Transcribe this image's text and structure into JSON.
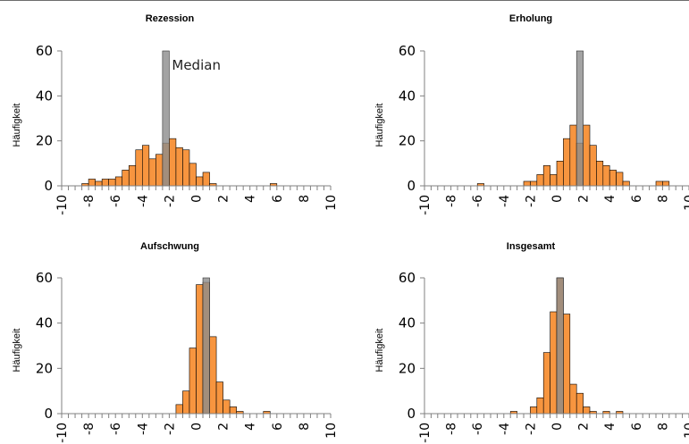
{
  "colors": {
    "bar_fill": "#f7953f",
    "bar_stroke": "#000000",
    "median_fill": "#8c8c8c",
    "median_opacity": 0.8,
    "axis": "#808080"
  },
  "chart_data": [
    {
      "type": "bar",
      "title": "Rezession",
      "ylabel": "Häufigkeit",
      "xlabel": "",
      "bin_width": 0.5,
      "xlim": [
        -10,
        10
      ],
      "ylim": [
        0,
        60
      ],
      "x_ticks": [
        "-10",
        "-8",
        "-6",
        "-4",
        "-2",
        "0",
        "2",
        "4",
        "6",
        "8",
        "10"
      ],
      "y_ticks": [
        "0",
        "20",
        "40",
        "60"
      ],
      "x": [
        -8.5,
        -8,
        -7.5,
        -7,
        -6.5,
        -6,
        -5.5,
        -5,
        -4.5,
        -4,
        -3.5,
        -3,
        -2.5,
        -2,
        -1.5,
        -1,
        -0.5,
        0,
        0.5,
        1,
        5.5
      ],
      "values": [
        1,
        3,
        2,
        3,
        3,
        4,
        7,
        9,
        16,
        18,
        12,
        14,
        19,
        21,
        17,
        16,
        10,
        4,
        6,
        1,
        1
      ],
      "median": {
        "x": -2.5,
        "height": 60,
        "label": "Median"
      }
    },
    {
      "type": "bar",
      "title": "Erholung",
      "ylabel": "Häufigkeit",
      "xlabel": "",
      "bin_width": 0.5,
      "xlim": [
        -10,
        10
      ],
      "ylim": [
        0,
        60
      ],
      "x_ticks": [
        "-10",
        "-8",
        "-6",
        "-4",
        "-2",
        "0",
        "2",
        "4",
        "6",
        "8",
        "10"
      ],
      "y_ticks": [
        "0",
        "20",
        "40",
        "60"
      ],
      "x": [
        -6,
        -2.5,
        -2,
        -1.5,
        -1,
        -0.5,
        0,
        0.5,
        1,
        1.5,
        2,
        2.5,
        3,
        3.5,
        4,
        4.5,
        5,
        7.5,
        8
      ],
      "values": [
        1,
        2,
        2,
        5,
        9,
        5,
        11,
        21,
        27,
        19,
        27,
        18,
        11,
        9,
        7,
        6,
        2,
        2,
        2
      ],
      "median": {
        "x": 1.5,
        "height": 60,
        "label": ""
      }
    },
    {
      "type": "bar",
      "title": "Aufschwung",
      "ylabel": "Häufigkeit",
      "xlabel": "",
      "bin_width": 0.5,
      "xlim": [
        -10,
        10
      ],
      "ylim": [
        0,
        60
      ],
      "x_ticks": [
        "-10",
        "-8",
        "-6",
        "-4",
        "-2",
        "0",
        "2",
        "4",
        "6",
        "8",
        "10"
      ],
      "y_ticks": [
        "0",
        "20",
        "40",
        "60"
      ],
      "x": [
        -1.5,
        -1,
        -0.5,
        0,
        0.5,
        1,
        1.5,
        2,
        2.5,
        3,
        5
      ],
      "values": [
        4,
        10,
        29,
        57,
        58,
        34,
        14,
        6,
        3,
        1,
        1
      ],
      "median": {
        "x": 0.5,
        "height": 60,
        "label": ""
      }
    },
    {
      "type": "bar",
      "title": "Insgesamt",
      "ylabel": "Häufigkeit",
      "xlabel": "",
      "bin_width": 0.5,
      "xlim": [
        -10,
        10
      ],
      "ylim": [
        0,
        60
      ],
      "x_ticks": [
        "-10",
        "-8",
        "-6",
        "-4",
        "-2",
        "0",
        "2",
        "4",
        "6",
        "8",
        "10"
      ],
      "y_ticks": [
        "0",
        "20",
        "40",
        "60"
      ],
      "x": [
        -3.5,
        -2,
        -1.5,
        -1,
        -0.5,
        0,
        0.5,
        1,
        1.5,
        2,
        2.5,
        3.5,
        4.5
      ],
      "values": [
        1,
        3,
        7,
        27,
        45,
        60,
        44,
        13,
        9,
        3,
        1,
        1,
        1
      ],
      "median": {
        "x": 0,
        "height": 60,
        "label": ""
      }
    }
  ]
}
